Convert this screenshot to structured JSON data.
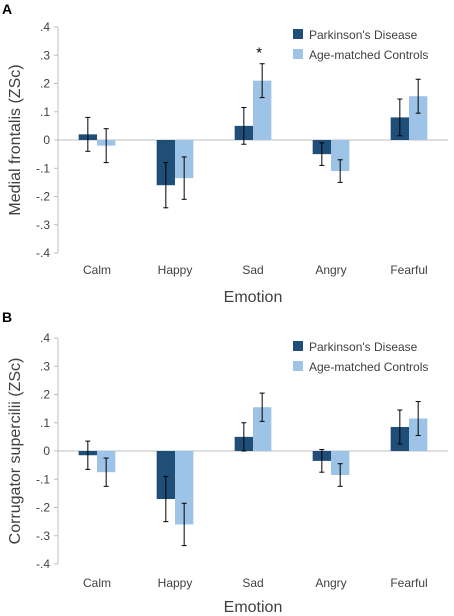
{
  "chart_data": [
    {
      "type": "bar",
      "panel_label": "A",
      "ylabel": "Medial frontalis (ZSc)",
      "xlabel": "Emotion",
      "categories": [
        "Calm",
        "Happy",
        "Sad",
        "Angry",
        "Fearful"
      ],
      "ylim": [
        -0.4,
        0.4
      ],
      "yticks": [
        -0.4,
        -0.3,
        -0.2,
        -0.1,
        0,
        0.1,
        0.2,
        0.3,
        0.4
      ],
      "ytick_labels": [
        "-.4",
        "-.3",
        "-.2",
        "-.1",
        "0",
        ".1",
        ".2",
        ".3",
        ".4"
      ],
      "grid": false,
      "legend_position": "top-right",
      "series": [
        {
          "name": "Parkinson's Disease",
          "color": "#1f4e79",
          "values": [
            0.02,
            -0.16,
            0.05,
            -0.05,
            0.08
          ],
          "errors": [
            0.06,
            0.08,
            0.065,
            0.04,
            0.065
          ]
        },
        {
          "name": "Age-matched Controls",
          "color": "#9dc3e6",
          "values": [
            -0.02,
            -0.135,
            0.21,
            -0.11,
            0.155
          ],
          "errors": [
            0.06,
            0.075,
            0.06,
            0.04,
            0.06
          ]
        }
      ],
      "annotations": [
        {
          "text": "*",
          "category": "Sad",
          "series": 1
        }
      ]
    },
    {
      "type": "bar",
      "panel_label": "B",
      "ylabel": "Corrugator supercilii (ZSc)",
      "xlabel": "Emotion",
      "categories": [
        "Calm",
        "Happy",
        "Sad",
        "Angry",
        "Fearful"
      ],
      "ylim": [
        -0.4,
        0.4
      ],
      "yticks": [
        -0.4,
        -0.3,
        -0.2,
        -0.1,
        0,
        0.1,
        0.2,
        0.3,
        0.4
      ],
      "ytick_labels": [
        "-.4",
        "-.3",
        "-.2",
        "-.1",
        "0",
        ".1",
        ".2",
        ".3",
        ".4"
      ],
      "grid": false,
      "legend_position": "top-right",
      "series": [
        {
          "name": "Parkinson's Disease",
          "color": "#1f4e79",
          "values": [
            -0.015,
            -0.17,
            0.05,
            -0.035,
            0.085
          ],
          "errors": [
            0.05,
            0.08,
            0.05,
            0.04,
            0.06
          ]
        },
        {
          "name": "Age-matched Controls",
          "color": "#9dc3e6",
          "values": [
            -0.075,
            -0.26,
            0.155,
            -0.085,
            0.115
          ],
          "errors": [
            0.05,
            0.075,
            0.05,
            0.04,
            0.06
          ]
        }
      ],
      "annotations": []
    }
  ]
}
